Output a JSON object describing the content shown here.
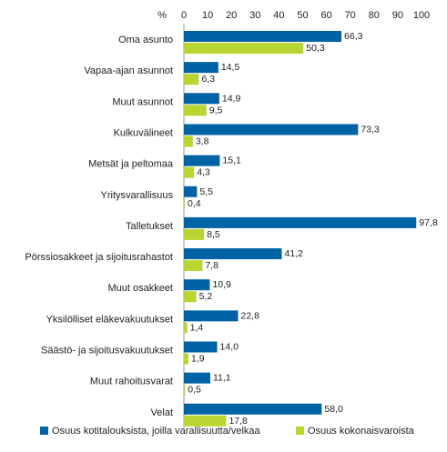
{
  "chart_data": {
    "type": "bar",
    "orientation": "horizontal",
    "axis_unit": "%",
    "xlim": [
      0,
      100
    ],
    "x_ticks": [
      "0",
      "10",
      "20",
      "30",
      "40",
      "50",
      "60",
      "70",
      "80",
      "90",
      "100"
    ],
    "grid": false,
    "legend_position": "bottom",
    "categories": [
      "Oma asunto",
      "Vapaa-ajan asunnot",
      "Muut asunnot",
      "Kulkuvälineet",
      "Metsät ja peltomaa",
      "Yritysvarallisuus",
      "Talletukset",
      "Pörssiosakkeet ja sijoitusrahastot",
      "Muut osakkeet",
      "Yksilölliset eläkevakuutukset",
      "Säästö- ja sijoitusvakuutukset",
      "Muut rahoitusvarat",
      "Velat"
    ],
    "series": [
      {
        "name": "Osuus kotitalouksista, joilla varallisuutta/velkaa",
        "color": "#0063a6",
        "values": [
          66.3,
          14.5,
          14.9,
          73.3,
          15.1,
          5.5,
          97.8,
          41.2,
          10.9,
          22.8,
          14.0,
          11.1,
          58.0
        ],
        "labels": [
          "66,3",
          "14,5",
          "14,9",
          "73,3",
          "15,1",
          "5,5",
          "97,8",
          "41,2",
          "10,9",
          "22,8",
          "14,0",
          "11,1",
          "58,0"
        ]
      },
      {
        "name": "Osuus kokonaisvaroista",
        "color": "#b9d532",
        "values": [
          50.3,
          6.3,
          9.5,
          3.8,
          4.3,
          0.4,
          8.5,
          7.8,
          5.2,
          1.4,
          1.9,
          0.5,
          17.8
        ],
        "labels": [
          "50,3",
          "6,3",
          "9,5",
          "3,8",
          "4,3",
          "0,4",
          "8,5",
          "7,8",
          "5,2",
          "1,4",
          "1,9",
          "0,5",
          "17,8"
        ]
      }
    ]
  }
}
